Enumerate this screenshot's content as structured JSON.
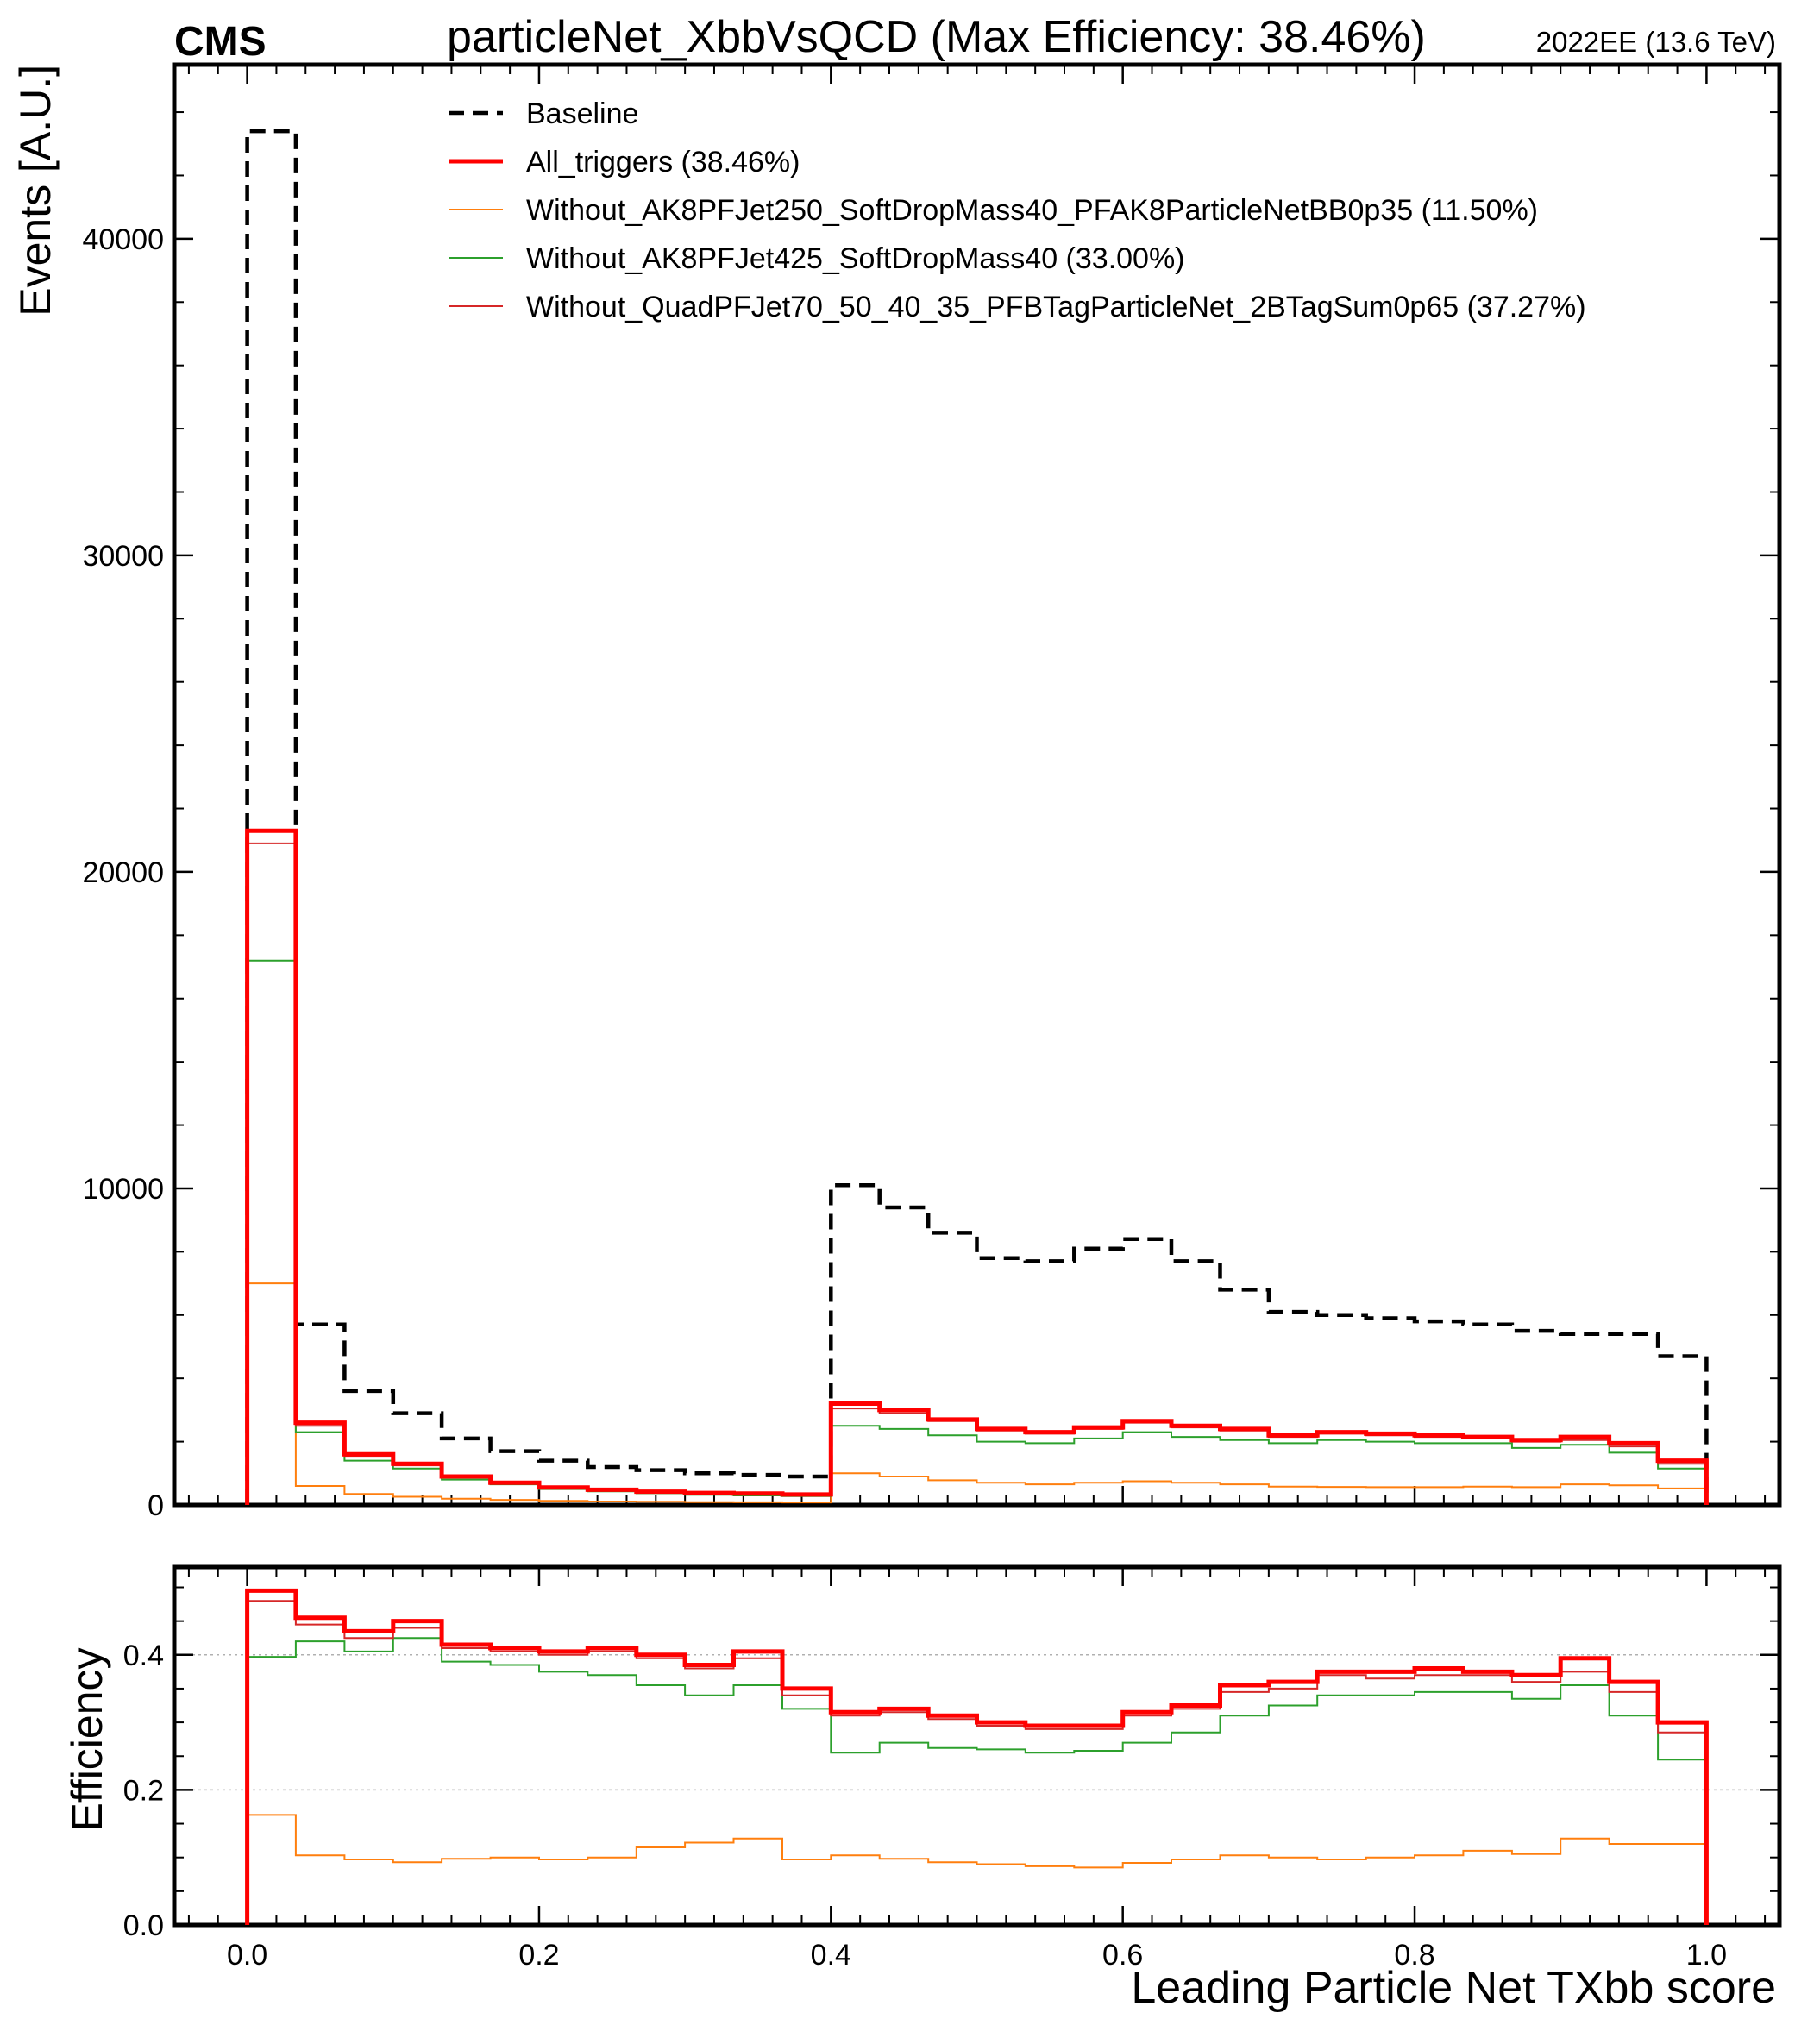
{
  "header": {
    "experiment": "CMS",
    "title": "particleNet_XbbVsQCD (Max Efficiency: 38.46%)",
    "lumi": "2022EE (13.6 TeV)"
  },
  "chart_data": {
    "type": "line",
    "subtype": "step histogram with efficiency ratio panel",
    "xlabel": "Leading Particle Net TXbb score",
    "xlim": [
      -0.05,
      1.05
    ],
    "bin_edges": [
      0.0,
      0.0333,
      0.0667,
      0.1,
      0.1333,
      0.1667,
      0.2,
      0.2333,
      0.2667,
      0.3,
      0.3333,
      0.3667,
      0.4,
      0.4333,
      0.4667,
      0.5,
      0.5333,
      0.5667,
      0.6,
      0.6333,
      0.6667,
      0.7,
      0.7333,
      0.7667,
      0.8,
      0.8333,
      0.8667,
      0.9,
      0.9333,
      0.9667,
      1.0
    ],
    "x_ticks": [
      0.0,
      0.2,
      0.4,
      0.6,
      0.8,
      1.0
    ],
    "x_tick_labels": [
      "0.0",
      "0.2",
      "0.4",
      "0.6",
      "0.8",
      "1.0"
    ],
    "legend_position": "top-right",
    "top_panel": {
      "ylabel": "Events [A.U.]",
      "ylim": [
        0,
        45500
      ],
      "y_ticks": [
        0,
        10000,
        20000,
        30000,
        40000
      ],
      "y_tick_labels": [
        "0",
        "10000",
        "20000",
        "30000",
        "40000"
      ],
      "series": [
        {
          "name": "Baseline",
          "color": "#000000",
          "style": "dashed",
          "width": 4.5,
          "values": [
            43400,
            5700,
            3600,
            2900,
            2100,
            1700,
            1400,
            1200,
            1100,
            1000,
            950,
            900,
            10100,
            9400,
            8600,
            7800,
            7700,
            8100,
            8400,
            7700,
            6800,
            6100,
            6000,
            5900,
            5800,
            5700,
            5500,
            5400,
            5400,
            4700
          ]
        },
        {
          "name": "All_triggers (38.46%)",
          "color": "#ff0000",
          "style": "solid",
          "width": 5,
          "values": [
            21300,
            2600,
            1600,
            1300,
            900,
            700,
            550,
            480,
            420,
            380,
            360,
            330,
            3200,
            3000,
            2700,
            2400,
            2300,
            2450,
            2650,
            2500,
            2400,
            2200,
            2300,
            2250,
            2200,
            2150,
            2050,
            2150,
            1950,
            1400
          ]
        },
        {
          "name": "Without_AK8PFJet250_SoftDropMass40_PFAK8ParticleNetBB0p35 (11.50%)",
          "color": "#ff7f0e",
          "style": "solid",
          "width": 2,
          "values": [
            7000,
            600,
            350,
            260,
            200,
            160,
            130,
            110,
            100,
            90,
            85,
            80,
            1000,
            900,
            780,
            700,
            650,
            700,
            750,
            700,
            650,
            580,
            570,
            560,
            560,
            580,
            560,
            650,
            620,
            520
          ]
        },
        {
          "name": "Without_AK8PFJet425_SoftDropMass40 (33.00%)",
          "color": "#2ca02c",
          "style": "solid",
          "width": 2,
          "values": [
            17200,
            2300,
            1400,
            1150,
            800,
            650,
            500,
            430,
            370,
            320,
            300,
            280,
            2500,
            2400,
            2200,
            2000,
            1950,
            2100,
            2300,
            2150,
            2050,
            1950,
            2050,
            2000,
            1950,
            1950,
            1800,
            1900,
            1650,
            1150
          ]
        },
        {
          "name": "Without_QuadPFJet70_50_40_35_PFBTagParticleNet_2BTagSum0p65 (37.27%)",
          "color": "#d62728",
          "style": "solid",
          "width": 2,
          "values": [
            20900,
            2500,
            1550,
            1250,
            880,
            690,
            540,
            470,
            410,
            370,
            350,
            320,
            3050,
            2900,
            2650,
            2350,
            2250,
            2400,
            2600,
            2450,
            2350,
            2150,
            2250,
            2200,
            2150,
            2100,
            2000,
            2050,
            1850,
            1300
          ]
        }
      ]
    },
    "bottom_panel": {
      "ylabel": "Efficiency",
      "ylim": [
        0.0,
        0.53
      ],
      "y_ticks": [
        0.0,
        0.2,
        0.4
      ],
      "y_tick_labels": [
        "0.0",
        "0.2",
        "0.4"
      ],
      "grid_lines": [
        0.2,
        0.4
      ],
      "series": [
        {
          "name": "All_triggers (38.46%)",
          "color": "#ff0000",
          "width": 5,
          "values": [
            0.495,
            0.455,
            0.435,
            0.45,
            0.415,
            0.41,
            0.405,
            0.41,
            0.4,
            0.385,
            0.405,
            0.35,
            0.315,
            0.32,
            0.31,
            0.3,
            0.295,
            0.295,
            0.315,
            0.325,
            0.355,
            0.36,
            0.375,
            0.375,
            0.38,
            0.375,
            0.37,
            0.395,
            0.36,
            0.3
          ]
        },
        {
          "name": "Without_AK8PFJet250_SoftDropMass40_PFAK8ParticleNetBB0p35 (11.50%)",
          "color": "#ff7f0e",
          "width": 2,
          "values": [
            0.163,
            0.103,
            0.097,
            0.093,
            0.098,
            0.1,
            0.097,
            0.1,
            0.115,
            0.122,
            0.128,
            0.097,
            0.103,
            0.098,
            0.093,
            0.09,
            0.087,
            0.085,
            0.092,
            0.097,
            0.103,
            0.1,
            0.097,
            0.1,
            0.103,
            0.11,
            0.105,
            0.128,
            0.12,
            0.12
          ]
        },
        {
          "name": "Without_AK8PFJet425_SoftDropMass40 (33.00%)",
          "color": "#2ca02c",
          "width": 2,
          "values": [
            0.397,
            0.42,
            0.405,
            0.425,
            0.39,
            0.385,
            0.375,
            0.37,
            0.355,
            0.34,
            0.355,
            0.32,
            0.255,
            0.27,
            0.262,
            0.26,
            0.255,
            0.258,
            0.27,
            0.285,
            0.31,
            0.325,
            0.34,
            0.34,
            0.345,
            0.345,
            0.335,
            0.355,
            0.31,
            0.245
          ]
        },
        {
          "name": "Without_QuadPFJet70_50_40_35_PFBTagParticleNet_2BTagSum0p65 (37.27%)",
          "color": "#d62728",
          "width": 2,
          "values": [
            0.48,
            0.445,
            0.425,
            0.44,
            0.41,
            0.405,
            0.4,
            0.405,
            0.395,
            0.38,
            0.395,
            0.34,
            0.31,
            0.315,
            0.305,
            0.295,
            0.29,
            0.29,
            0.31,
            0.32,
            0.345,
            0.35,
            0.37,
            0.365,
            0.37,
            0.37,
            0.36,
            0.375,
            0.345,
            0.285
          ]
        }
      ]
    }
  }
}
